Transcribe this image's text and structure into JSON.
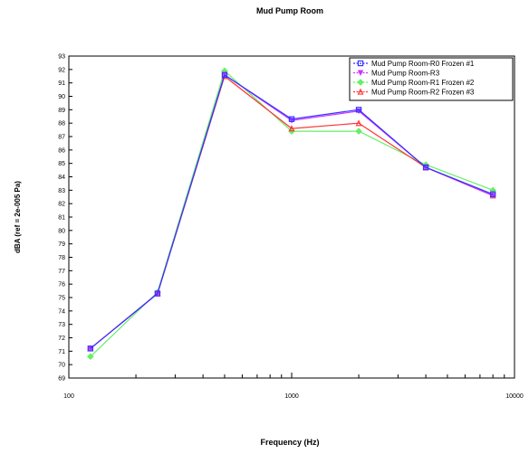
{
  "chart_data": {
    "type": "line",
    "title": "Mud Pump Room",
    "xlabel": "Frequency (Hz)",
    "ylabel": "dBA (ref = 2e-005 Pa)",
    "x_scale": "log",
    "xlim": [
      100,
      10000
    ],
    "ylim": [
      69,
      93
    ],
    "grid": false,
    "legend_position": "top-right",
    "x_tick_labels": [
      "100",
      "1000",
      "10000"
    ],
    "y_ticks": [
      69,
      70,
      71,
      72,
      73,
      74,
      75,
      76,
      77,
      78,
      79,
      80,
      81,
      82,
      83,
      84,
      85,
      86,
      87,
      88,
      89,
      90,
      91,
      92,
      93
    ],
    "x": [
      125,
      250,
      500,
      1000,
      2000,
      4000,
      8000
    ],
    "series": [
      {
        "name": "Mud Pump Room-R0 Frozen #1",
        "color": "#3333ff",
        "marker": "square",
        "values": [
          71.2,
          75.3,
          91.6,
          88.3,
          89.0,
          84.7,
          82.7
        ]
      },
      {
        "name": "Mud Pump Room-R3",
        "color": "#cc33ff",
        "marker": "triangle-down",
        "values": [
          71.2,
          75.3,
          91.6,
          88.2,
          88.9,
          84.7,
          82.6
        ]
      },
      {
        "name": "Mud Pump Room-R1 Frozen #2",
        "color": "#66ee66",
        "marker": "diamond",
        "values": [
          70.6,
          75.4,
          91.9,
          87.4,
          87.4,
          84.9,
          83.0
        ]
      },
      {
        "name": "Mud Pump Room-R2 Frozen #3",
        "color": "#ff3333",
        "marker": "triangle-up",
        "values": [
          71.2,
          75.3,
          91.5,
          87.6,
          88.0,
          84.7,
          82.6
        ]
      }
    ]
  }
}
